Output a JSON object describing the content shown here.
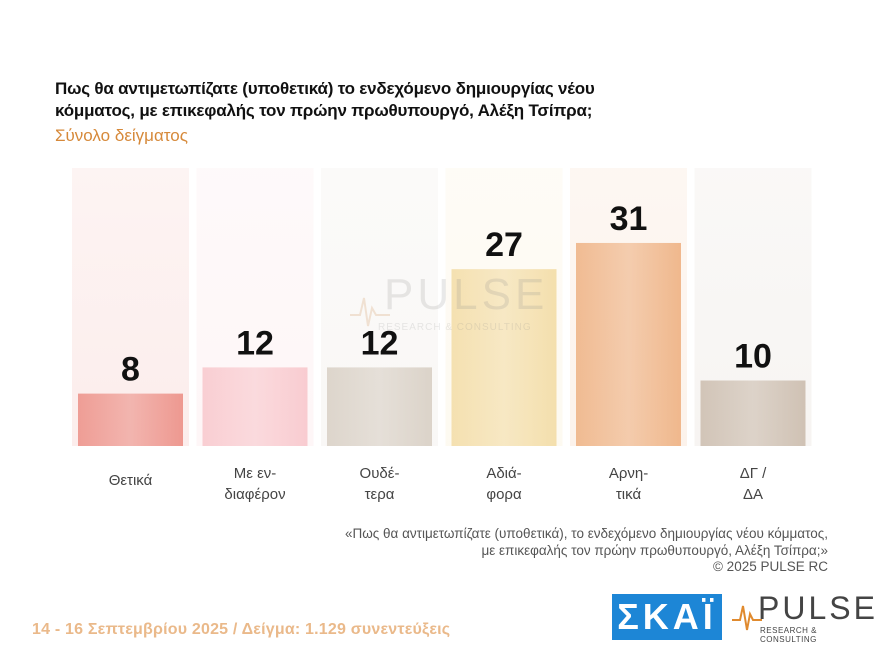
{
  "header": {
    "title": "Πως θα αντιμετωπίζατε (υποθετικά) το ενδεχόμενο δημιουργίας νέου κόμματος, με επικεφαλής τον πρώην πρωθυπουργό, Αλέξη Τσίπρα;",
    "subtitle": "Σύνολο δείγματος"
  },
  "watermark": {
    "word": "PULSE",
    "sub": "RESEARCH & CONSULTING"
  },
  "chart_data": {
    "type": "bar",
    "title": "Πως θα αντιμετωπίζατε (υποθετικά) το ενδεχόμενο δημιουργίας νέου κόμματος, με επικεφαλής τον πρώην πρωθυπουργό, Αλέξη Τσίπρα;",
    "categories": [
      [
        "Θετικά"
      ],
      [
        "Με εν-",
        "διαφέρον"
      ],
      [
        "Ουδέ-",
        "τερα"
      ],
      [
        "Αδιά-",
        "φορα"
      ],
      [
        "Αρνη-",
        "τικά"
      ],
      [
        "ΔΓ /",
        "ΔΑ"
      ]
    ],
    "values": [
      8,
      12,
      12,
      27,
      31,
      10
    ],
    "ylim": [
      0,
      40
    ],
    "xlabel": "",
    "ylabel": "",
    "colors": [
      "#ec8f86",
      "#f8c7cc",
      "#d8cfc4",
      "#f3dca5",
      "#eeb182",
      "#cbbcad"
    ],
    "legend": "none"
  },
  "footer": {
    "quote_line1": "«Πως θα αντιμετωπίζατε (υποθετικά), το ενδεχόμενο δημιουργίας νέου κόμματος,",
    "quote_line2": "με επικεφαλής τον πρώην πρωθυπουργό, Αλέξη Τσίπρα;»",
    "copyright": "©  2025  PULSE RC",
    "date_sample": "14 - 16 Σεπτεμβρίου 2025  /  Δείγμα:  1.129 συνεντεύξεις"
  },
  "logos": {
    "skai": "ΣΚΑΪ",
    "pulse_word": "PULSE",
    "pulse_sub": "RESEARCH & CONSULTING"
  },
  "colors": {
    "accent": "#d6893a",
    "footer": "#eab98a",
    "skai_blue": "#1d86d6"
  }
}
